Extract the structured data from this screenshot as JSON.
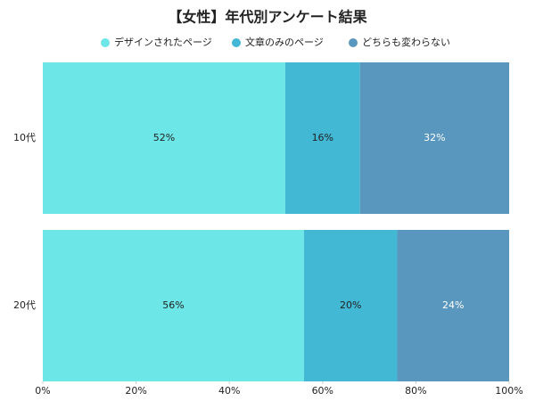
{
  "chart_data": {
    "type": "stacked-bar-horizontal",
    "title": "【女性】年代別アンケート結果",
    "categories": [
      "10代",
      "20代"
    ],
    "series": [
      {
        "name": "デザインされたページ",
        "color": "#6de6e8",
        "label_color": "#222222",
        "values": [
          52,
          56
        ],
        "value_labels": [
          "52%",
          "56%"
        ]
      },
      {
        "name": "文章のみのページ",
        "color": "#42b8d5",
        "label_color": "#222222",
        "values": [
          16,
          20
        ],
        "value_labels": [
          "16%",
          "20%"
        ]
      },
      {
        "name": "どちらも変わらない",
        "color": "#5a97be",
        "label_color": "#ffffff",
        "values": [
          32,
          24
        ],
        "value_labels": [
          "32%",
          "24%"
        ]
      }
    ],
    "xlim": [
      0,
      100
    ],
    "xticks": [
      {
        "value": 0,
        "label": "0%"
      },
      {
        "value": 20,
        "label": "20%"
      },
      {
        "value": 40,
        "label": "40%"
      },
      {
        "value": 60,
        "label": "60%"
      },
      {
        "value": 80,
        "label": "80%"
      },
      {
        "value": 100,
        "label": "100%"
      }
    ]
  }
}
